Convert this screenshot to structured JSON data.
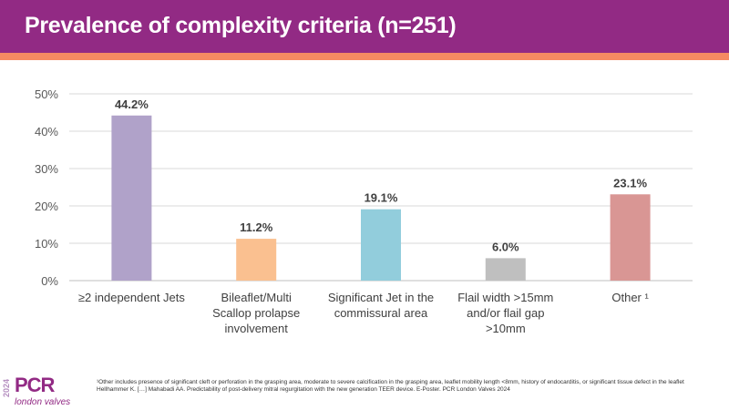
{
  "header": {
    "title": "Prevalence of complexity criteria (n=251)"
  },
  "chart_data": {
    "type": "bar",
    "title": "Prevalence of complexity criteria (n=251)",
    "categories": [
      [
        "≥2 independent Jets"
      ],
      [
        "Bileaflet/Multi",
        "Scallop prolapse",
        "involvement"
      ],
      [
        "Significant Jet in the",
        "commissural area"
      ],
      [
        "Flail width >15mm",
        "and/or flail gap",
        ">10mm"
      ],
      [
        "Other ¹"
      ]
    ],
    "values": [
      44.2,
      11.2,
      19.1,
      6.0,
      23.1
    ],
    "data_labels": [
      "44.2%",
      "11.2%",
      "19.1%",
      "6.0%",
      "23.1%"
    ],
    "colors": [
      "#b0a2c9",
      "#fac090",
      "#92cddc",
      "#bfbfbf",
      "#d99694"
    ],
    "ylim": [
      0,
      50
    ],
    "yticks": [
      "0%",
      "10%",
      "20%",
      "30%",
      "40%",
      "50%"
    ],
    "grid": true,
    "xlabel": "",
    "ylabel": ""
  },
  "footer": {
    "footnote": "¹Other includes presence of significant cleft or perforation in the grasping area, moderate to severe calcification in the grasping area, leaflet mobility length <8mm, history of endocarditis, or significant tissue defect in the leaflet",
    "reference": "Hellhammer K. […] Mahabadi AA. Predictability of post-delivery mitral regurgitation with the new generation TEER device. E-Poster. PCR London Valves 2024"
  },
  "logo": {
    "year": "2024",
    "brand": "PCR",
    "sub": "london valves"
  }
}
